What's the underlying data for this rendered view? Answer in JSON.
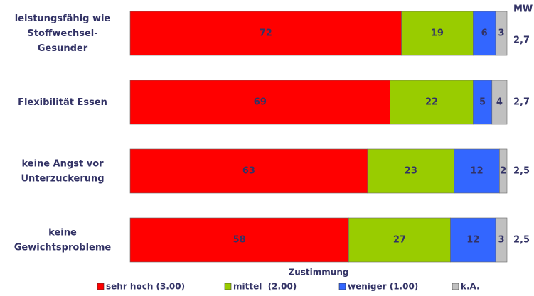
{
  "chart_data": {
    "type": "stacked-bar-horizontal",
    "xlabel": "Zustimmung",
    "categories": [
      [
        "leistungsfähig wie",
        "Stoffwechsel-",
        "Gesunder"
      ],
      [
        "Flexibilität Essen"
      ],
      [
        "keine Angst vor",
        "Unterzuckerung"
      ],
      [
        "keine",
        "Gewichtsprobleme"
      ]
    ],
    "series": [
      {
        "name": "sehr hoch (3.00)",
        "color": "#ff0000",
        "values": [
          72,
          69,
          63,
          58
        ]
      },
      {
        "name": "mittel  (2.00)",
        "color": "#99cc00",
        "values": [
          19,
          22,
          23,
          27
        ]
      },
      {
        "name": "weniger (1.00)",
        "color": "#3366ff",
        "values": [
          6,
          5,
          12,
          12
        ]
      },
      {
        "name": "k.A.",
        "color": "#c0c0c0",
        "values": [
          3,
          4,
          2,
          3
        ]
      }
    ],
    "xlim": [
      0,
      100
    ],
    "mw": {
      "label": "MW",
      "values": [
        2.7,
        2.7,
        2.5,
        2.5
      ],
      "value_labels": [
        "2,7",
        "2,7",
        "2,5",
        "2,5"
      ]
    }
  }
}
